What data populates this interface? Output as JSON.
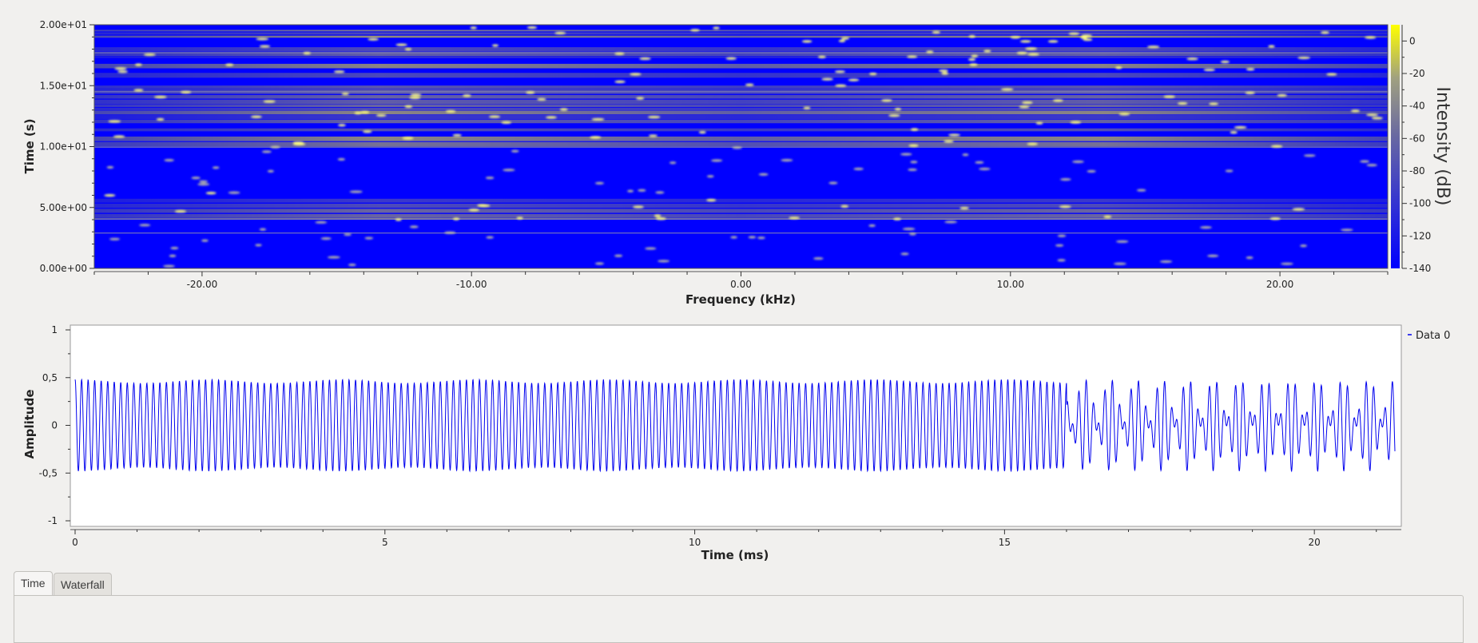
{
  "chart_data": [
    {
      "type": "heatmap",
      "title": "",
      "xlabel": "Frequency (kHz)",
      "ylabel": "Time (s)",
      "colorbar_label": "Intensity (dB)",
      "xlim": [
        -24,
        24
      ],
      "ylim": [
        0,
        20
      ],
      "x_ticks": [
        -20,
        -10,
        0,
        10,
        20
      ],
      "x_tick_labels": [
        "-20.00",
        "-10.00",
        "0.00",
        "10.00",
        "20.00"
      ],
      "y_ticks": [
        0,
        5,
        10,
        15,
        20
      ],
      "y_tick_labels": [
        "0.00e+00",
        "5.00e+00",
        "1.00e+01",
        "1.50e+01",
        "2.00e+01"
      ],
      "colorbar_ticks": [
        0,
        -20,
        -40,
        -60,
        -80,
        -100,
        -120,
        -140
      ],
      "colorbar_range": [
        -140,
        10
      ],
      "colormap": [
        "#0000ff",
        "#8a8a8a",
        "#ffff00"
      ],
      "high_intensity_bands_s": [
        [
          4.0,
          6.2
        ],
        [
          10.0,
          20.0
        ]
      ]
    },
    {
      "type": "line",
      "title": "",
      "xlabel": "Time (ms)",
      "ylabel": "Amplitude",
      "xlim": [
        0,
        21.3
      ],
      "ylim": [
        -1,
        1
      ],
      "x_ticks": [
        0,
        5,
        10,
        15,
        20
      ],
      "x_tick_labels": [
        "0",
        "5",
        "10",
        "15",
        "20"
      ],
      "y_ticks": [
        1,
        0.5,
        0,
        -0.5,
        -1
      ],
      "y_tick_labels": [
        "1",
        "0,5",
        "0",
        "-0,5",
        "-1"
      ],
      "legend_position": "top-right",
      "series": [
        {
          "name": "Data 0",
          "color": "#0000ff",
          "description_values": {
            "carrier_khz": 9.5,
            "amplitude": 0.48,
            "modulation_period_ms": 2.15,
            "modulation_depth": 0.08,
            "second_tone_start_ms": 16.0,
            "second_tone_khz": 7.1
          }
        }
      ]
    }
  ],
  "tabs": [
    {
      "label": "Time"
    },
    {
      "label": "Waterfall"
    }
  ]
}
